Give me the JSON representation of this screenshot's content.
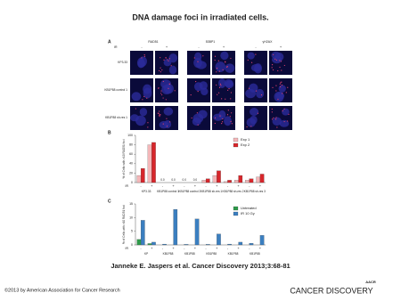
{
  "title": "DNA damage foci in irradiated cells.",
  "panel_a": {
    "label": "A",
    "ir_label": "IR",
    "stains": [
      "RAD51",
      "53BP1",
      "γH2AX"
    ],
    "treatments": [
      "-",
      "+",
      "-",
      "+",
      "-",
      "+"
    ],
    "rows": [
      "KP3.33",
      "KB1P88 control 1",
      "KB1P88 sh-res 1"
    ]
  },
  "chart_data": [
    {
      "type": "bar",
      "panel": "B",
      "ylabel": "% of Cells with >10 RAD51 foci",
      "xlabel": "IR",
      "categories": [
        "-",
        "+",
        "-",
        "+",
        "-",
        "+",
        "-",
        "+",
        "-",
        "+",
        "-",
        "+"
      ],
      "groups": [
        "KP3.33",
        "KB1P88 control 1",
        "KB1P88 control 2",
        "KB1P88 sh-res 1",
        "KB1P88 sh-res 2",
        "KB1P88 sh-res 3"
      ],
      "ylim": [
        0,
        100
      ],
      "yticks": [
        0,
        20,
        40,
        60,
        80,
        100
      ],
      "series": [
        {
          "name": "Exp 1",
          "color": "#f4b6b8",
          "values": [
            15,
            80,
            0,
            0,
            0,
            0,
            5,
            15,
            2,
            5,
            5,
            12
          ],
          "value_labels": [
            null,
            null,
            "0.0",
            "0.0",
            "0.0",
            "0.0",
            null,
            null,
            null,
            null,
            null,
            null
          ]
        },
        {
          "name": "Exp 2",
          "color": "#d7262b",
          "values": [
            30,
            85,
            0,
            0,
            0,
            0,
            8,
            25,
            5,
            15,
            8,
            18
          ]
        }
      ]
    },
    {
      "type": "bar",
      "panel": "C",
      "ylabel": "% of Cells with >10 RAD51 foci",
      "xlabel": "IR",
      "categories": [
        "-",
        "+",
        "-",
        "+",
        "-",
        "+",
        "-",
        "+",
        "-",
        "+",
        "-",
        "+"
      ],
      "groups": [
        "KP",
        "KB1P88",
        "KB1P88",
        "KB1P88",
        "KB1P88",
        "KB1P88"
      ],
      "ylim": [
        0,
        15
      ],
      "yticks": [
        0,
        5,
        10,
        15
      ],
      "series": [
        {
          "name": "Untreated",
          "color": "#2e9a4a",
          "values": [
            2,
            0.5,
            0,
            0,
            0,
            0,
            0,
            0,
            0,
            0,
            0,
            0
          ]
        },
        {
          "name": "IR 10 Gy",
          "color": "#3b7fc0",
          "values": [
            9,
            1,
            0.3,
            13,
            0.2,
            9.5,
            0.2,
            4,
            0.3,
            1,
            0.6,
            3.5
          ]
        }
      ]
    }
  ],
  "citation": "Janneke E. Jaspers et al. Cancer Discovery 2013;3:68-81",
  "copyright": "©2013 by American Association for Cancer Research",
  "logo": "AACR",
  "journal": "CANCER DISCOVERY"
}
